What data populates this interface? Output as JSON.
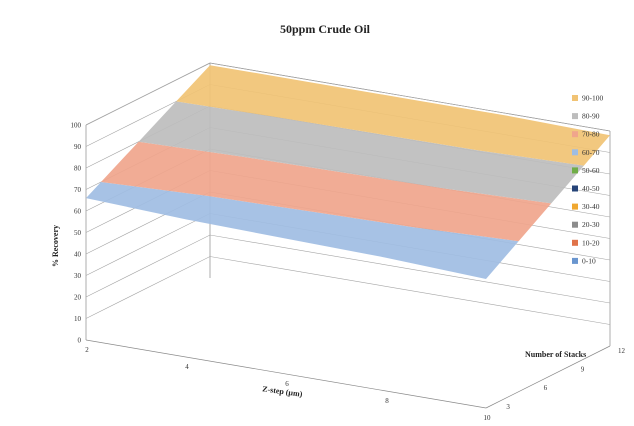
{
  "chart_data": {
    "type": "surface",
    "title": "50ppm Crude Oil",
    "xlabel": "Z-step (µm)",
    "ylabel": "% Recovery",
    "zlabel": "Number of Stacks",
    "x_ticks": [
      "2",
      "4",
      "6",
      "8",
      "10"
    ],
    "y_ticks": [
      "0",
      "10",
      "20",
      "30",
      "40",
      "50",
      "60",
      "70",
      "80",
      "90",
      "100"
    ],
    "z_ticks": [
      "3",
      "6",
      "9",
      "12"
    ],
    "ylim": [
      0,
      100
    ],
    "legend_position": "right",
    "legend": [
      {
        "label": "90-100",
        "color": "#f1c374"
      },
      {
        "label": "80-90",
        "color": "#bdbdbd"
      },
      {
        "label": "70-80",
        "color": "#f0a58c"
      },
      {
        "label": "60-70",
        "color": "#9fbde3"
      },
      {
        "label": "50-60",
        "color": "#70ad47"
      },
      {
        "label": "40-50",
        "color": "#264478"
      },
      {
        "label": "30-40",
        "color": "#f0a830"
      },
      {
        "label": "20-30",
        "color": "#8c8c8c"
      },
      {
        "label": "10-20",
        "color": "#e0734a"
      },
      {
        "label": "0-10",
        "color": "#6a96cf"
      }
    ],
    "surface_front_edge": {
      "x": [
        2,
        4,
        6,
        8,
        10
      ],
      "values": [
        66,
        64,
        63,
        62,
        60
      ]
    },
    "surface_back_edge": {
      "x": [
        2,
        4,
        6,
        8,
        10
      ],
      "values": [
        99,
        99,
        99,
        99,
        98
      ]
    }
  }
}
